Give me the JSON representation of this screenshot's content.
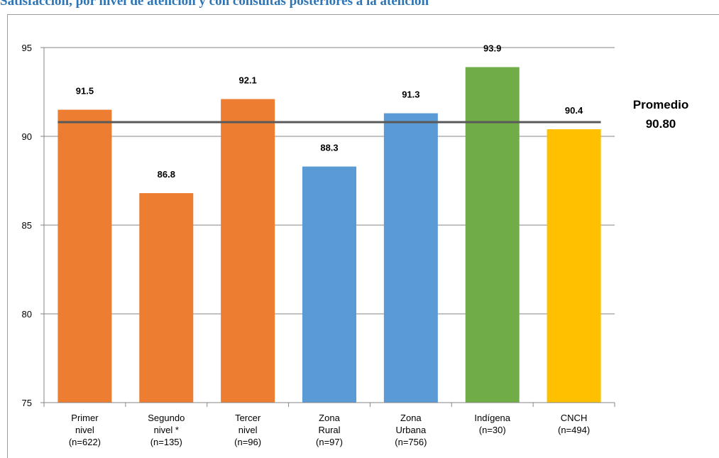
{
  "header": {
    "cut_title": "Satisfacción, por nivel de atención y con consultas posteriores a la atención"
  },
  "chart_data": {
    "type": "bar",
    "categories": [
      [
        "Primer",
        "nivel",
        "(n=622)"
      ],
      [
        "Segundo",
        "nivel *",
        "(n=135)"
      ],
      [
        "Tercer",
        "nivel",
        "(n=96)"
      ],
      [
        "Zona",
        "Rural",
        "(n=97)"
      ],
      [
        "Zona",
        "Urbana",
        "(n=756)"
      ],
      [
        "Indígena",
        "(n=30)"
      ],
      [
        "CNCH",
        "(n=494)"
      ]
    ],
    "values": [
      91.5,
      86.8,
      92.1,
      88.3,
      91.3,
      93.9,
      90.4
    ],
    "data_labels": [
      "91.5",
      "86.8",
      "92.1",
      "88.3",
      "91.3",
      "93.9",
      "90.4"
    ],
    "colors": [
      "#ed7d31",
      "#ed7d31",
      "#ed7d31",
      "#5b9bd5",
      "#5b9bd5",
      "#70ad47",
      "#ffc000"
    ],
    "ylim": [
      75,
      95
    ],
    "yticks": [
      75,
      80,
      85,
      90,
      95
    ],
    "grid": true,
    "reference_line": {
      "value": 90.8,
      "color": "#595959",
      "label_line1": "Promedio",
      "label_line2": "90.80"
    }
  }
}
